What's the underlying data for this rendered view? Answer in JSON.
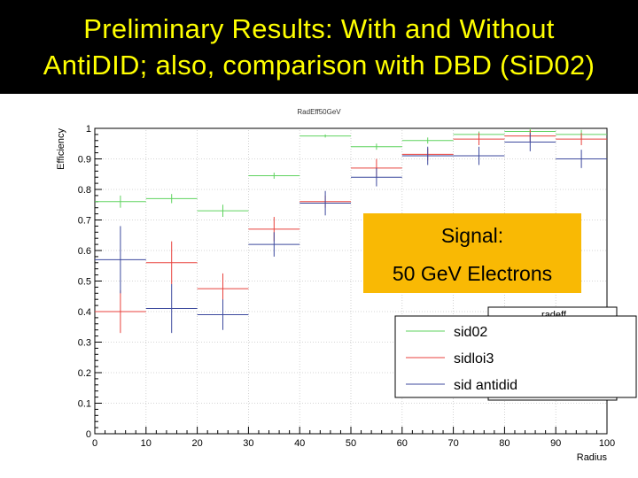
{
  "slide": {
    "title_line_1": "Preliminary Results: With and Without",
    "title_line_2": "AntiDID; also, comparison with DBD (SiD02)",
    "title_color": "#ffff00",
    "background_color": "#000000"
  },
  "callout": {
    "line_1": "Signal:",
    "line_2": "50 GeV Electrons",
    "color": "#f9b904"
  },
  "chart_data": {
    "type": "line",
    "style": "histogram with error bars",
    "title": "RadEff50GeV",
    "xlabel": "Radius",
    "ylabel": "Efficiency",
    "xlim": [
      0,
      100
    ],
    "ylim": [
      0,
      1
    ],
    "x_ticks": [
      "0",
      "10",
      "20",
      "30",
      "40",
      "50",
      "60",
      "70",
      "80",
      "90",
      "100"
    ],
    "y_ticks": [
      "0",
      "0.1",
      "0.2",
      "0.3",
      "0.4",
      "0.5",
      "0.6",
      "0.7",
      "0.8",
      "0.9",
      "1"
    ],
    "grid": true,
    "legend_position": "bottom-right",
    "legend_back_label": "radeff",
    "bin_edges": [
      0,
      10,
      20,
      30,
      40,
      50,
      60,
      70,
      80,
      90,
      100
    ],
    "series": [
      {
        "name": "sid02",
        "color": "#5fd35f",
        "values": [
          0.76,
          0.77,
          0.73,
          0.845,
          0.975,
          0.94,
          0.96,
          0.98,
          0.99,
          0.98
        ],
        "errors": [
          0.02,
          0.015,
          0.02,
          0.01,
          0.005,
          0.01,
          0.01,
          0.01,
          0.01,
          0.015
        ]
      },
      {
        "name": "sidloi3",
        "color": "#e8413c",
        "values": [
          0.4,
          0.56,
          0.475,
          0.67,
          0.76,
          0.87,
          0.915,
          0.965,
          0.975,
          0.965
        ],
        "errors": [
          0.07,
          0.07,
          0.05,
          0.04,
          0.02,
          0.03,
          0.02,
          0.02,
          0.02,
          0.02
        ]
      },
      {
        "name": "sid antidid",
        "color": "#3d4a9e",
        "values": [
          0.57,
          0.41,
          0.39,
          0.62,
          0.755,
          0.84,
          0.91,
          0.91,
          0.955,
          0.9
        ],
        "errors": [
          0.11,
          0.08,
          0.05,
          0.04,
          0.04,
          0.03,
          0.03,
          0.03,
          0.03,
          0.03
        ]
      }
    ]
  }
}
